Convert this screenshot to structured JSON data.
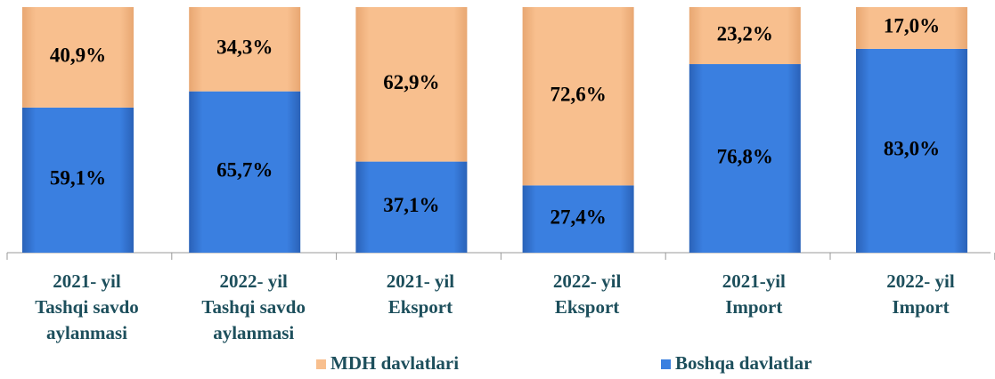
{
  "chart_data": {
    "type": "stacked_bar",
    "categories": [
      [
        "2021-  yil",
        "Tashqi savdo",
        "aylanmasi"
      ],
      [
        "2022-  yil",
        "Tashqi savdo",
        "aylanmasi"
      ],
      [
        "2021-  yil",
        "Eksport"
      ],
      [
        "2022-  yil",
        "Eksport"
      ],
      [
        "2021-yil",
        "Import"
      ],
      [
        "2022- yil",
        "Import"
      ]
    ],
    "series": [
      {
        "name": "Boshqa davlatlar",
        "color": "#3a7fe0",
        "values": [
          59.1,
          65.7,
          37.1,
          27.4,
          76.8,
          83.0
        ],
        "value_labels": [
          "59,1%",
          "65,7%",
          "37,1%",
          "27,4%",
          "76,8%",
          "83,0%"
        ]
      },
      {
        "name": "MDH davlatlari",
        "color": "#f8bf8e",
        "values": [
          40.9,
          34.3,
          62.9,
          72.6,
          23.2,
          17.0
        ],
        "value_labels": [
          "40,9%",
          "34,3%",
          "62,9%",
          "72,6%",
          "23,2%",
          "17,0%"
        ]
      }
    ],
    "ylim": [
      0,
      100
    ],
    "legend": "bottom"
  }
}
